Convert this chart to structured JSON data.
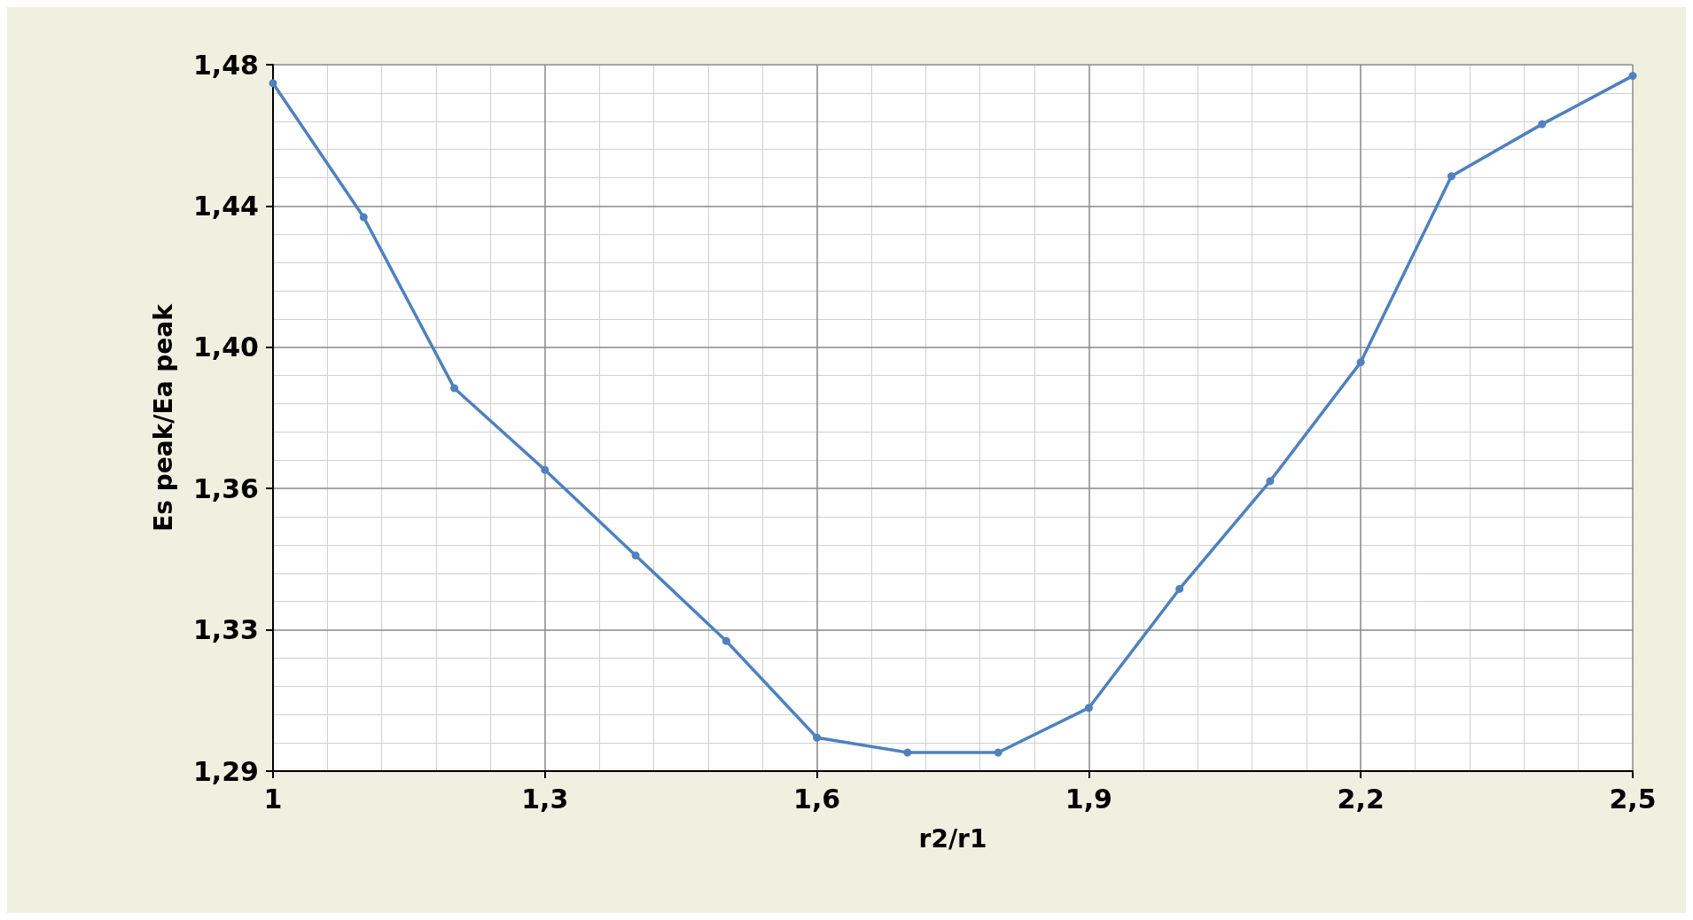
{
  "chart_data": {
    "type": "line",
    "xlabel": "r2/r1",
    "ylabel": "Es peak/Ea peak",
    "x": [
      1,
      1.1,
      1.2,
      1.3,
      1.4,
      1.5,
      1.6,
      1.7,
      1.8,
      1.9,
      2,
      2.1,
      2.2,
      2.3,
      2.4,
      2.5
    ],
    "series": [
      {
        "color": "#4f81bd",
        "values": [
          1.473,
          1.437,
          1.391,
          1.369,
          1.346,
          1.323,
          1.297,
          1.293,
          1.293,
          1.305,
          1.337,
          1.366,
          1.398,
          1.448,
          1.462,
          1.475
        ]
      }
    ],
    "xlim": [
      1,
      2.5
    ],
    "xticks": [
      {
        "value": 1,
        "label": "1"
      },
      {
        "value": 1.3,
        "label": "1,3"
      },
      {
        "value": 1.6,
        "label": "1,6"
      },
      {
        "value": 1.9,
        "label": "1,9"
      },
      {
        "value": 2.2,
        "label": "2,2"
      },
      {
        "value": 2.5,
        "label": "2,5"
      }
    ],
    "ylim": [
      1.288,
      1.478
    ],
    "yticks": [
      {
        "value": 1.288,
        "label": "1,29"
      },
      {
        "value": 1.326,
        "label": "1,33"
      },
      {
        "value": 1.364,
        "label": "1,36"
      },
      {
        "value": 1.402,
        "label": "1,40"
      },
      {
        "value": 1.44,
        "label": "1,44"
      },
      {
        "value": 1.478,
        "label": "1,48"
      }
    ],
    "grid": true,
    "marker": "circle",
    "line_style": "solid"
  }
}
